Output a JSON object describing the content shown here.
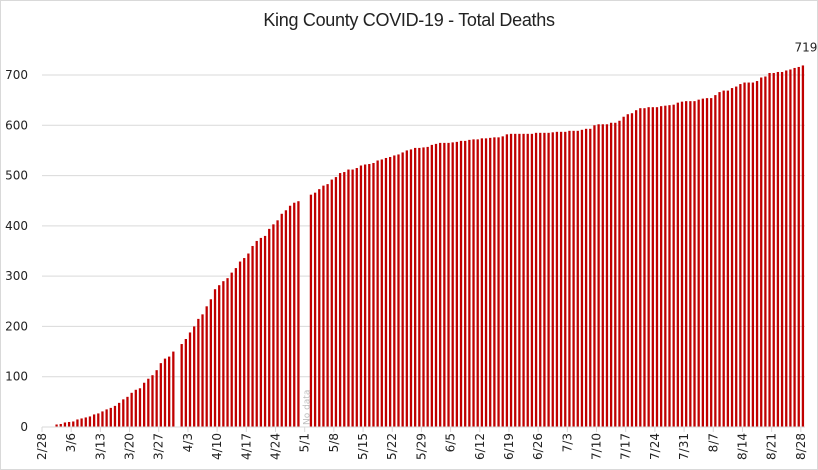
{
  "chart_data": {
    "type": "bar",
    "title": "King County COVID-19 - Total Deaths",
    "xlabel": "",
    "ylabel": "",
    "ylim": [
      0,
      700
    ],
    "yticks": [
      0,
      100,
      200,
      300,
      400,
      500,
      600,
      700
    ],
    "grid": true,
    "legend": "none",
    "bar_color": "#C00000",
    "start_date": "2/28",
    "end_date": "8/28",
    "xtick_labels": [
      "2/28",
      "3/6",
      "3/13",
      "3/20",
      "3/27",
      "4/3",
      "4/10",
      "4/17",
      "4/24",
      "5/1",
      "5/8",
      "5/15",
      "5/22",
      "5/29",
      "6/5",
      "6/12",
      "6/19",
      "6/26",
      "7/3",
      "7/10",
      "7/17",
      "7/24",
      "7/31",
      "8/7",
      "8/14",
      "8/21",
      "8/28"
    ],
    "annotations": [
      {
        "text": "719",
        "at": "8/28"
      },
      {
        "text": "No data",
        "at": "5/2"
      }
    ],
    "values": [
      0,
      0,
      0,
      5,
      6,
      9,
      10,
      11,
      15,
      17,
      19,
      21,
      25,
      27,
      31,
      35,
      38,
      42,
      48,
      55,
      60,
      68,
      74,
      77,
      88,
      96,
      103,
      113,
      127,
      136,
      140,
      150,
      null,
      165,
      175,
      188,
      200,
      215,
      224,
      240,
      254,
      274,
      282,
      290,
      296,
      307,
      316,
      329,
      336,
      345,
      360,
      370,
      376,
      380,
      394,
      403,
      411,
      424,
      431,
      440,
      446,
      449,
      null,
      null,
      462,
      466,
      473,
      480,
      483,
      492,
      497,
      505,
      507,
      512,
      512,
      515,
      520,
      522,
      523,
      525,
      530,
      532,
      535,
      537,
      540,
      542,
      546,
      550,
      552,
      555,
      555,
      556,
      557,
      561,
      563,
      565,
      565,
      565,
      566,
      567,
      569,
      569,
      571,
      572,
      572,
      574,
      574,
      575,
      576,
      576,
      578,
      582,
      583,
      583,
      583,
      583,
      583,
      583,
      585,
      585,
      585,
      585,
      586,
      587,
      587,
      587,
      589,
      589,
      589,
      591,
      593,
      593,
      600,
      602,
      602,
      602,
      605,
      605,
      609,
      617,
      622,
      624,
      630,
      634,
      634,
      636,
      636,
      636,
      638,
      639,
      640,
      641,
      645,
      647,
      648,
      648,
      648,
      651,
      653,
      654,
      654,
      660,
      666,
      669,
      669,
      674,
      677,
      682,
      685,
      685,
      685,
      688,
      695,
      697,
      704,
      704,
      706,
      706,
      709,
      711,
      714,
      716,
      719
    ]
  }
}
